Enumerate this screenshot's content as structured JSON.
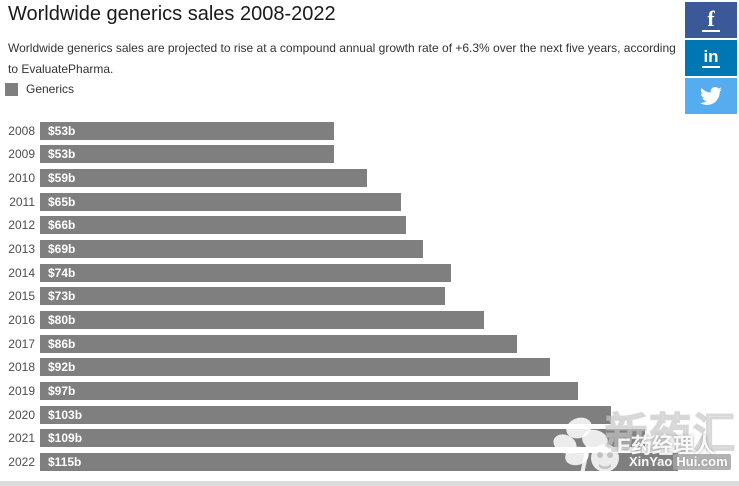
{
  "header": {
    "title": "Worldwide generics sales 2008-2022",
    "subtitle": "Worldwide generics sales are projected to rise at a compound annual growth rate of +6.3% over the next five years, according to EvaluatePharma."
  },
  "legend": {
    "label": "Generics",
    "swatch_color": "#7f7f7f"
  },
  "social": {
    "facebook_label": "f",
    "linkedin_label": "in"
  },
  "chart_data": {
    "type": "bar",
    "orientation": "horizontal",
    "title": "Worldwide generics sales 2008-2022",
    "series_name": "Generics",
    "categories": [
      "2008",
      "2009",
      "2010",
      "2011",
      "2012",
      "2013",
      "2014",
      "2015",
      "2016",
      "2017",
      "2018",
      "2019",
      "2020",
      "2021",
      "2022"
    ],
    "values": [
      53,
      53,
      59,
      65,
      66,
      69,
      74,
      73,
      80,
      86,
      92,
      97,
      103,
      109,
      115
    ],
    "value_labels": [
      "$53b",
      "$53b",
      "$59b",
      "$65b",
      "$66b",
      "$69b",
      "$74b",
      "$73b",
      "$80b",
      "$86b",
      "$92b",
      "$97b",
      "$103b",
      "$109b",
      "$115b"
    ],
    "bar_color": "#7f7f7f",
    "xlim": [
      0,
      126
    ],
    "grid": false,
    "legend_position": "top-left",
    "data_labels": "inside-start"
  },
  "watermark": {
    "brand": "E药经理人",
    "site_prefix": "XinYao",
    "site_suffix": "Hui.com",
    "background_text": "新药汇"
  }
}
